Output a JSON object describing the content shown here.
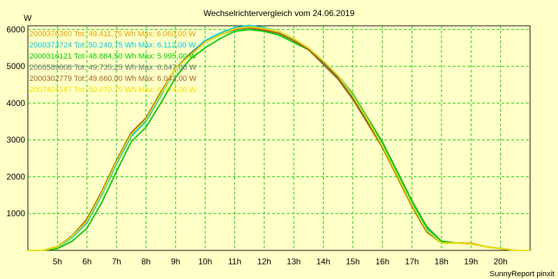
{
  "chart_data": {
    "type": "line",
    "title": "Wechselrichtervergleich vom 24.06.2019",
    "ylabel": "W",
    "xlabel": "",
    "ylim": [
      0,
      6100
    ],
    "xlim": [
      4.0,
      21.0
    ],
    "yticks": [
      1000,
      2000,
      3000,
      4000,
      5000,
      6000
    ],
    "xticks": [
      5,
      6,
      7,
      8,
      9,
      10,
      11,
      12,
      13,
      14,
      15,
      16,
      17,
      18,
      19,
      20
    ],
    "xtick_labels": [
      "5h",
      "6h",
      "7h",
      "8h",
      "9h",
      "10h",
      "11h",
      "12h",
      "13h",
      "14h",
      "15h",
      "16h",
      "17h",
      "18h",
      "19h",
      "20h"
    ],
    "grid": true,
    "legend_position": "top-left",
    "footer": "SunnyReport pinxit",
    "series": [
      {
        "name": "2000376360 Tot: 49.411,75 Wh Max: 6.060,00 W",
        "color": "#e8a000",
        "x": [
          4.0,
          4.5,
          5.0,
          5.5,
          6.0,
          6.5,
          7.0,
          7.5,
          8.0,
          8.5,
          9.0,
          9.5,
          10.0,
          10.5,
          11.0,
          11.5,
          12.0,
          12.5,
          13.0,
          13.5,
          14.0,
          14.5,
          15.0,
          15.5,
          16.0,
          16.5,
          17.0,
          17.5,
          18.0,
          18.5,
          19.0,
          19.5,
          20.0,
          20.5,
          21.0
        ],
        "y": [
          0,
          0,
          100,
          400,
          800,
          1550,
          2400,
          3150,
          3550,
          4250,
          4950,
          5300,
          5650,
          5850,
          6000,
          6060,
          6000,
          5900,
          5700,
          5450,
          5100,
          4700,
          4150,
          3500,
          2850,
          2050,
          1250,
          550,
          200,
          200,
          200,
          100,
          50,
          0,
          0
        ]
      },
      {
        "name": "2000373724 Tot: 50.240,75 Wh Max: 6.112,00 W",
        "color": "#00c8e6",
        "x": [
          4.0,
          4.5,
          5.0,
          5.5,
          6.0,
          6.5,
          7.0,
          7.5,
          8.0,
          8.5,
          9.0,
          9.5,
          10.0,
          10.5,
          11.0,
          11.5,
          12.0,
          12.5,
          13.0,
          13.5,
          14.0,
          14.5,
          15.0,
          15.5,
          16.0,
          16.5,
          17.0,
          17.5,
          18.0,
          18.5,
          19.0,
          19.5,
          20.0,
          20.5,
          21.0
        ],
        "y": [
          0,
          0,
          80,
          350,
          750,
          1500,
          2350,
          3100,
          3500,
          4200,
          4950,
          5350,
          5700,
          5900,
          6050,
          6110,
          6050,
          5950,
          5750,
          5500,
          5150,
          4750,
          4200,
          3550,
          2900,
          2100,
          1300,
          600,
          220,
          200,
          180,
          100,
          50,
          0,
          0
        ]
      },
      {
        "name": "2000316121 Tot: 48.884,50 Wh Max: 5.995,00 W",
        "color": "#00cc00",
        "x": [
          4.0,
          4.5,
          5.0,
          5.5,
          6.0,
          6.5,
          7.0,
          7.5,
          8.0,
          8.5,
          9.0,
          9.5,
          10.0,
          10.5,
          11.0,
          11.5,
          12.0,
          12.5,
          13.0,
          13.5,
          14.0,
          14.5,
          15.0,
          15.5,
          16.0,
          16.5,
          17.0,
          17.5,
          18.0,
          18.5,
          19.0,
          19.5,
          20.0,
          20.5,
          21.0
        ],
        "y": [
          0,
          0,
          50,
          250,
          600,
          1300,
          2150,
          2950,
          3350,
          4000,
          4700,
          5200,
          5500,
          5750,
          5950,
          5995,
          5950,
          5850,
          5650,
          5450,
          5100,
          4750,
          4250,
          3600,
          2950,
          2150,
          1350,
          650,
          250,
          200,
          180,
          100,
          50,
          0,
          0
        ]
      },
      {
        "name": "2000589608 Tot: 49.735,25 Wh Max: 6.047,00 W",
        "color": "#707070",
        "x": [
          4.0,
          4.5,
          5.0,
          5.5,
          6.0,
          6.5,
          7.0,
          7.5,
          8.0,
          8.5,
          9.0,
          9.5,
          10.0,
          10.5,
          11.0,
          11.5,
          12.0,
          12.5,
          13.0,
          13.5,
          14.0,
          14.5,
          15.0,
          15.5,
          16.0,
          16.5,
          17.0,
          17.5,
          18.0,
          18.5,
          19.0,
          19.5,
          20.0,
          20.5,
          21.0
        ],
        "y": [
          0,
          0,
          90,
          380,
          780,
          1550,
          2400,
          3150,
          3550,
          4250,
          4950,
          5350,
          5650,
          5850,
          6000,
          6047,
          5980,
          5900,
          5700,
          5450,
          5100,
          4700,
          4150,
          3500,
          2850,
          2050,
          1250,
          550,
          200,
          200,
          180,
          100,
          50,
          0,
          0
        ]
      },
      {
        "name": "2000302779 Tot: 49.660,00 Wh Max: 6.043,00 W",
        "color": "#a0642a",
        "x": [
          4.0,
          4.5,
          5.0,
          5.5,
          6.0,
          6.5,
          7.0,
          7.5,
          8.0,
          8.5,
          9.0,
          9.5,
          10.0,
          10.5,
          11.0,
          11.5,
          12.0,
          12.5,
          13.0,
          13.5,
          14.0,
          14.5,
          15.0,
          15.5,
          16.0,
          16.5,
          17.0,
          17.5,
          18.0,
          18.5,
          19.0,
          19.5,
          20.0,
          20.5,
          21.0
        ],
        "y": [
          0,
          0,
          100,
          400,
          850,
          1600,
          2450,
          3200,
          3600,
          4300,
          4950,
          5300,
          5650,
          5850,
          6000,
          6043,
          5980,
          5900,
          5700,
          5450,
          5050,
          4650,
          4100,
          3450,
          2800,
          2000,
          1200,
          500,
          200,
          200,
          180,
          100,
          50,
          0,
          0
        ]
      },
      {
        "name": "2007404187 Tot: 50.070,75 Wh Max: 6.074,00 W",
        "color": "#f0e000",
        "x": [
          4.0,
          4.5,
          5.0,
          5.5,
          6.0,
          6.5,
          7.0,
          7.5,
          8.0,
          8.5,
          9.0,
          9.5,
          10.0,
          10.5,
          11.0,
          11.5,
          12.0,
          12.5,
          13.0,
          13.5,
          14.0,
          14.5,
          15.0,
          15.5,
          16.0,
          16.5,
          17.0,
          17.5,
          18.0,
          18.5,
          19.0,
          19.5,
          20.0,
          20.5,
          21.0
        ],
        "y": [
          0,
          0,
          90,
          380,
          800,
          1550,
          2400,
          3150,
          3550,
          4250,
          4950,
          5300,
          5650,
          5850,
          6020,
          6074,
          6030,
          5950,
          5750,
          5500,
          5150,
          4750,
          4200,
          3550,
          2850,
          2050,
          1250,
          550,
          200,
          200,
          180,
          100,
          50,
          0,
          0
        ]
      }
    ]
  }
}
